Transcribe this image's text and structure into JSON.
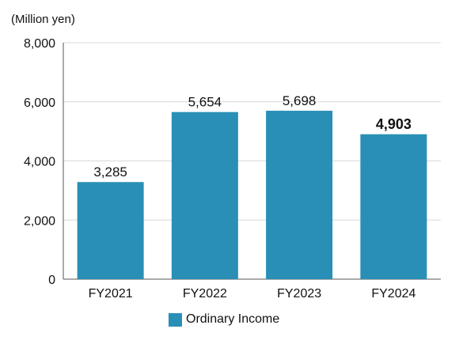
{
  "unit_label": "(Million yen)",
  "colors": {
    "bar": "#2a8fb6",
    "grid": "#d9d9d9",
    "axis": "#555555"
  },
  "chart_data": {
    "type": "bar",
    "categories": [
      "FY2021",
      "FY2022",
      "FY2023",
      "FY2024"
    ],
    "series": [
      {
        "name": "Ordinary Income",
        "values": [
          3285,
          5654,
          5698,
          4903
        ]
      }
    ],
    "data_labels": [
      "3,285",
      "5,654",
      "5,698",
      "4,903"
    ],
    "highlight_label_index": 3,
    "ylim": [
      0,
      8000
    ],
    "yticks": [
      0,
      2000,
      4000,
      6000,
      8000
    ],
    "ytick_labels": [
      "0",
      "2,000",
      "4,000",
      "6,000",
      "8,000"
    ],
    "grid": true,
    "legend_position": "bottom-center"
  }
}
